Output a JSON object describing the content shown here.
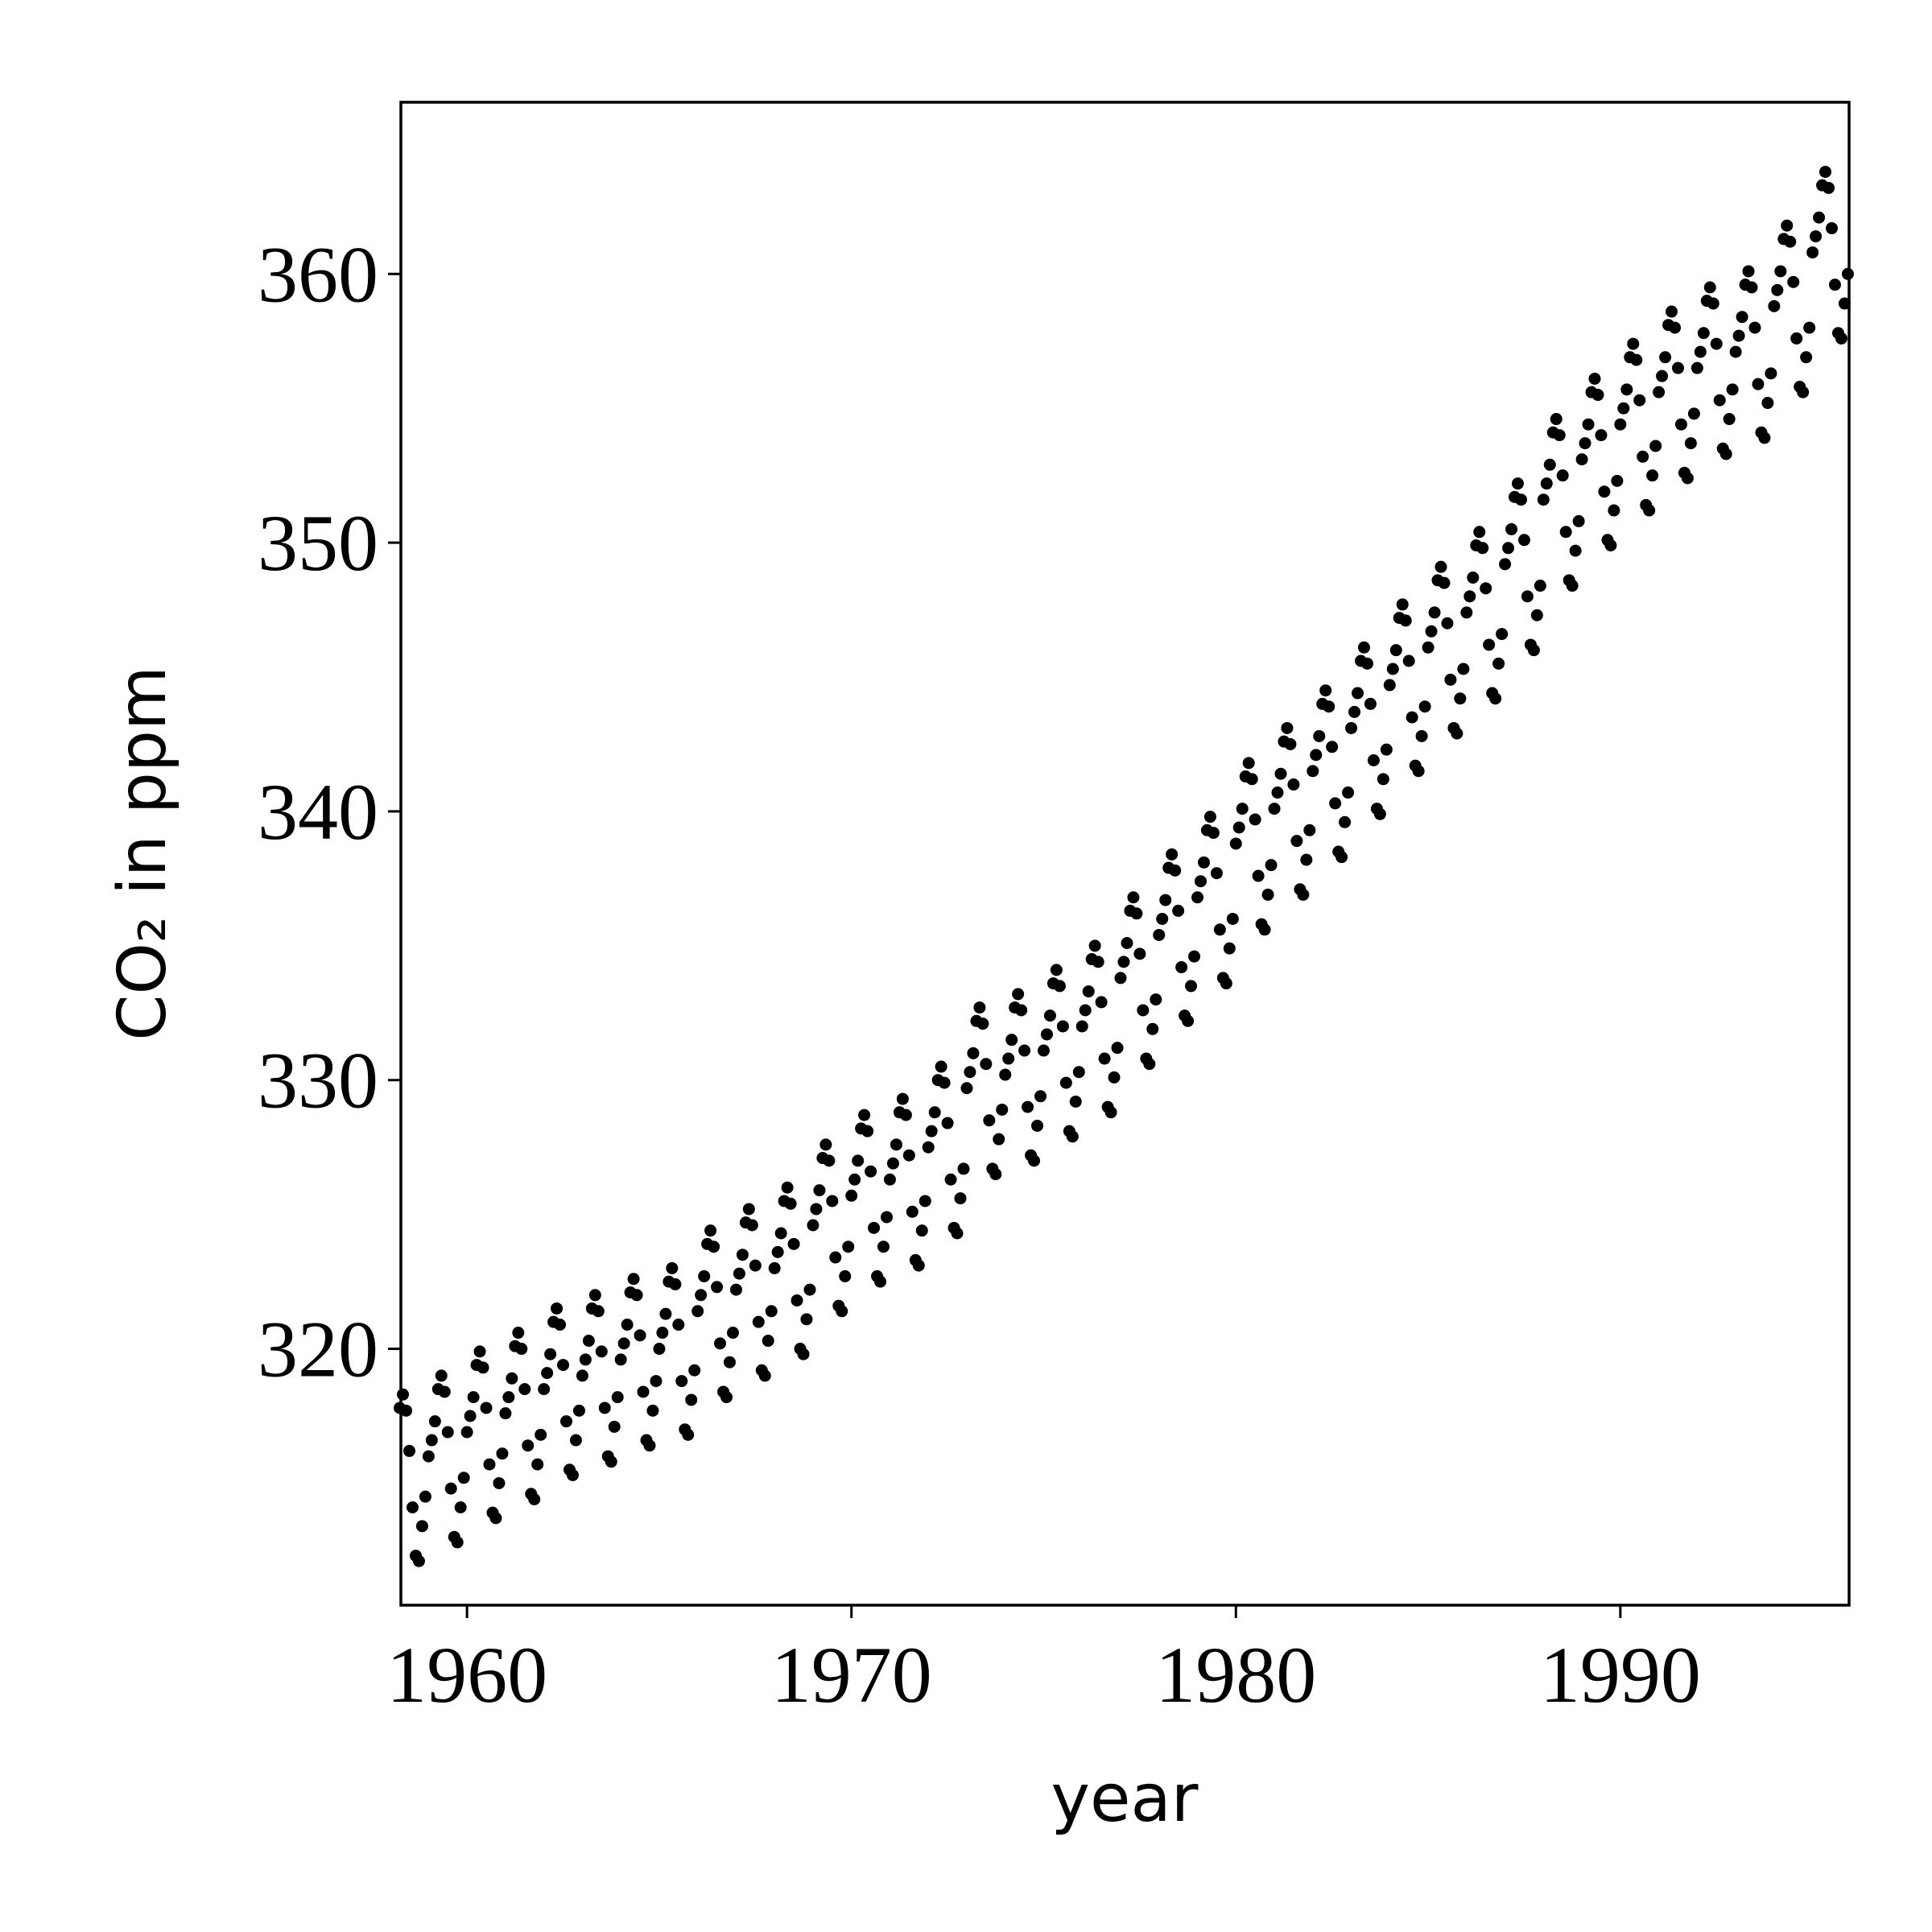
{
  "chart_data": {
    "type": "scatter",
    "xlabel": "year",
    "ylabel": "CO₂ in ppm",
    "color": "#000000",
    "xlim": [
      1958.28,
      1995.95
    ],
    "ylim": [
      310.46,
      366.39
    ],
    "xticks": [
      1960,
      1970,
      1980,
      1990
    ],
    "yticks": [
      320,
      330,
      340,
      350,
      360
    ],
    "x": [
      1958.25,
      1958.333,
      1958.417,
      1958.5,
      1958.583,
      1958.667,
      1958.75,
      1958.833,
      1958.917,
      1959,
      1959.083,
      1959.167,
      1959.25,
      1959.333,
      1959.417,
      1959.5,
      1959.583,
      1959.667,
      1959.75,
      1959.833,
      1959.917,
      1960,
      1960.083,
      1960.167,
      1960.25,
      1960.333,
      1960.417,
      1960.5,
      1960.583,
      1960.667,
      1960.75,
      1960.833,
      1960.917,
      1961,
      1961.083,
      1961.167,
      1961.25,
      1961.333,
      1961.417,
      1961.5,
      1961.583,
      1961.667,
      1961.75,
      1961.833,
      1961.917,
      1962,
      1962.083,
      1962.167,
      1962.25,
      1962.333,
      1962.417,
      1962.5,
      1962.583,
      1962.667,
      1962.75,
      1962.833,
      1962.917,
      1963,
      1963.083,
      1963.167,
      1963.25,
      1963.333,
      1963.417,
      1963.5,
      1963.583,
      1963.667,
      1963.75,
      1963.833,
      1963.917,
      1964,
      1964.083,
      1964.167,
      1964.25,
      1964.333,
      1964.417,
      1964.5,
      1964.583,
      1964.667,
      1964.75,
      1964.833,
      1964.917,
      1965,
      1965.083,
      1965.167,
      1965.25,
      1965.333,
      1965.417,
      1965.5,
      1965.583,
      1965.667,
      1965.75,
      1965.833,
      1965.917,
      1966,
      1966.083,
      1966.167,
      1966.25,
      1966.333,
      1966.417,
      1966.5,
      1966.583,
      1966.667,
      1966.75,
      1966.833,
      1966.917,
      1967,
      1967.083,
      1967.167,
      1967.25,
      1967.333,
      1967.417,
      1967.5,
      1967.583,
      1967.667,
      1967.75,
      1967.833,
      1967.917,
      1968,
      1968.083,
      1968.167,
      1968.25,
      1968.333,
      1968.417,
      1968.5,
      1968.583,
      1968.667,
      1968.75,
      1968.833,
      1968.917,
      1969,
      1969.083,
      1969.167,
      1969.25,
      1969.333,
      1969.417,
      1969.5,
      1969.583,
      1969.667,
      1969.75,
      1969.833,
      1969.917,
      1970,
      1970.083,
      1970.167,
      1970.25,
      1970.333,
      1970.417,
      1970.5,
      1970.583,
      1970.667,
      1970.75,
      1970.833,
      1970.917,
      1971,
      1971.083,
      1971.167,
      1971.25,
      1971.333,
      1971.417,
      1971.5,
      1971.583,
      1971.667,
      1971.75,
      1971.833,
      1971.917,
      1972,
      1972.083,
      1972.167,
      1972.25,
      1972.333,
      1972.417,
      1972.5,
      1972.583,
      1972.667,
      1972.75,
      1972.833,
      1972.917,
      1973,
      1973.083,
      1973.167,
      1973.25,
      1973.333,
      1973.417,
      1973.5,
      1973.583,
      1973.667,
      1973.75,
      1973.833,
      1973.917,
      1974,
      1974.083,
      1974.167,
      1974.25,
      1974.333,
      1974.417,
      1974.5,
      1974.583,
      1974.667,
      1974.75,
      1974.833,
      1974.917,
      1975,
      1975.083,
      1975.167,
      1975.25,
      1975.333,
      1975.417,
      1975.5,
      1975.583,
      1975.667,
      1975.75,
      1975.833,
      1975.917,
      1976,
      1976.083,
      1976.167,
      1976.25,
      1976.333,
      1976.417,
      1976.5,
      1976.583,
      1976.667,
      1976.75,
      1976.833,
      1976.917,
      1977,
      1977.083,
      1977.167,
      1977.25,
      1977.333,
      1977.417,
      1977.5,
      1977.583,
      1977.667,
      1977.75,
      1977.833,
      1977.917,
      1978,
      1978.083,
      1978.167,
      1978.25,
      1978.333,
      1978.417,
      1978.5,
      1978.583,
      1978.667,
      1978.75,
      1978.833,
      1978.917,
      1979,
      1979.083,
      1979.167,
      1979.25,
      1979.333,
      1979.417,
      1979.5,
      1979.583,
      1979.667,
      1979.75,
      1979.833,
      1979.917,
      1980,
      1980.083,
      1980.167,
      1980.25,
      1980.333,
      1980.417,
      1980.5,
      1980.583,
      1980.667,
      1980.75,
      1980.833,
      1980.917,
      1981,
      1981.083,
      1981.167,
      1981.25,
      1981.333,
      1981.417,
      1981.5,
      1981.583,
      1981.667,
      1981.75,
      1981.833,
      1981.917,
      1982,
      1982.083,
      1982.167,
      1982.25,
      1982.333,
      1982.417,
      1982.5,
      1982.583,
      1982.667,
      1982.75,
      1982.833,
      1982.917,
      1983,
      1983.083,
      1983.167,
      1983.25,
      1983.333,
      1983.417,
      1983.5,
      1983.583,
      1983.667,
      1983.75,
      1983.833,
      1983.917,
      1984,
      1984.083,
      1984.167,
      1984.25,
      1984.333,
      1984.417,
      1984.5,
      1984.583,
      1984.667,
      1984.75,
      1984.833,
      1984.917,
      1985,
      1985.083,
      1985.167,
      1985.25,
      1985.333,
      1985.417,
      1985.5,
      1985.583,
      1985.667,
      1985.75,
      1985.833,
      1985.917,
      1986,
      1986.083,
      1986.167,
      1986.25,
      1986.333,
      1986.417,
      1986.5,
      1986.583,
      1986.667,
      1986.75,
      1986.833,
      1986.917,
      1987,
      1987.083,
      1987.167,
      1987.25,
      1987.333,
      1987.417,
      1987.5,
      1987.583,
      1987.667,
      1987.75,
      1987.833,
      1987.917,
      1988,
      1988.083,
      1988.167,
      1988.25,
      1988.333,
      1988.417,
      1988.5,
      1988.583,
      1988.667,
      1988.75,
      1988.833,
      1988.917,
      1989,
      1989.083,
      1989.167,
      1989.25,
      1989.333,
      1989.417,
      1989.5,
      1989.583,
      1989.667,
      1989.75,
      1989.833,
      1989.917,
      1990,
      1990.083,
      1990.167,
      1990.25,
      1990.333,
      1990.417,
      1990.5,
      1990.583,
      1990.667,
      1990.75,
      1990.833,
      1990.917,
      1991,
      1991.083,
      1991.167,
      1991.25,
      1991.333,
      1991.417,
      1991.5,
      1991.583,
      1991.667,
      1991.75,
      1991.833,
      1991.917,
      1992,
      1992.083,
      1992.167,
      1992.25,
      1992.333,
      1992.417,
      1992.5,
      1992.583,
      1992.667,
      1992.75,
      1992.833,
      1992.917,
      1993,
      1993.083,
      1993.167,
      1993.25,
      1993.333,
      1993.417,
      1993.5,
      1993.583,
      1993.667,
      1993.75,
      1993.833,
      1993.917,
      1994,
      1994.083,
      1994.167,
      1994.25,
      1994.333,
      1994.417,
      1994.5,
      1994.583,
      1994.667,
      1994.75,
      1994.833,
      1994.917,
      1995,
      1995.083,
      1995.167,
      1995.25,
      1995.333,
      1995.417,
      1995.5,
      1995.583,
      1995.667,
      1995.75,
      1995.833,
      1995.917
    ],
    "values": [
      317.8,
      318.3,
      317.7,
      316.2,
      314.1,
      312.3,
      312.1,
      313.4,
      314.5,
      316.0,
      316.6,
      317.3,
      318.5,
      319.0,
      318.4,
      316.9,
      314.8,
      313.0,
      312.8,
      314.1,
      315.2,
      316.9,
      317.5,
      318.2,
      319.4,
      319.9,
      319.3,
      317.8,
      315.7,
      313.9,
      313.7,
      315.0,
      316.1,
      317.6,
      318.2,
      318.9,
      320.1,
      320.6,
      320.0,
      318.5,
      316.4,
      314.6,
      314.4,
      315.7,
      316.8,
      318.5,
      319.1,
      319.8,
      321.0,
      321.5,
      320.9,
      319.4,
      317.3,
      315.5,
      315.3,
      316.6,
      317.7,
      319.0,
      319.6,
      320.3,
      321.5,
      322.0,
      321.4,
      319.9,
      317.8,
      316.0,
      315.8,
      317.1,
      318.2,
      319.6,
      320.2,
      320.9,
      322.1,
      322.6,
      322.0,
      320.5,
      318.4,
      316.6,
      316.4,
      317.7,
      318.8,
      320.0,
      320.6,
      321.3,
      322.5,
      323.0,
      322.4,
      320.9,
      318.8,
      317.0,
      316.8,
      318.1,
      319.2,
      321.4,
      322.0,
      322.7,
      323.9,
      324.4,
      323.8,
      322.3,
      320.2,
      318.4,
      318.2,
      319.5,
      320.6,
      322.2,
      322.8,
      323.5,
      324.7,
      325.2,
      324.6,
      323.1,
      321.0,
      319.2,
      319.0,
      320.3,
      321.4,
      323.0,
      323.6,
      324.3,
      325.5,
      326.0,
      325.4,
      323.9,
      321.8,
      320.0,
      319.8,
      321.1,
      322.2,
      324.6,
      325.2,
      325.9,
      327.1,
      327.6,
      327.0,
      325.5,
      323.4,
      321.6,
      321.4,
      322.7,
      323.8,
      325.7,
      326.3,
      327.0,
      328.2,
      328.7,
      328.1,
      326.6,
      324.5,
      322.7,
      322.5,
      323.8,
      324.9,
      326.3,
      326.9,
      327.6,
      328.8,
      329.3,
      328.7,
      327.2,
      325.1,
      323.3,
      323.1,
      324.4,
      325.5,
      327.5,
      328.1,
      328.8,
      330.0,
      330.5,
      329.9,
      328.4,
      326.3,
      324.5,
      324.3,
      325.6,
      326.7,
      329.7,
      330.3,
      331.0,
      332.2,
      332.7,
      332.1,
      330.6,
      328.5,
      326.7,
      326.5,
      327.8,
      328.9,
      330.2,
      330.8,
      331.5,
      332.7,
      333.2,
      332.6,
      331.1,
      329.0,
      327.2,
      327.0,
      328.3,
      329.4,
      331.1,
      331.7,
      332.4,
      333.6,
      334.1,
      333.5,
      332.0,
      329.9,
      328.1,
      327.9,
      329.2,
      330.3,
      332.0,
      332.6,
      333.3,
      334.5,
      335.0,
      334.4,
      332.9,
      330.8,
      329.0,
      328.8,
      330.1,
      331.2,
      333.8,
      334.4,
      335.1,
      336.3,
      336.8,
      336.2,
      334.7,
      332.6,
      330.8,
      330.6,
      331.9,
      333.0,
      335.4,
      336.0,
      336.7,
      337.9,
      338.4,
      337.8,
      336.3,
      334.2,
      332.4,
      332.2,
      333.5,
      334.6,
      336.8,
      337.4,
      338.1,
      339.3,
      339.8,
      339.2,
      337.7,
      335.6,
      333.8,
      333.6,
      334.9,
      336.0,
      338.8,
      339.4,
      340.1,
      341.3,
      341.8,
      341.2,
      339.7,
      337.6,
      335.8,
      335.6,
      336.9,
      338.0,
      340.1,
      340.7,
      341.4,
      342.6,
      343.1,
      342.5,
      341.0,
      338.9,
      337.1,
      336.9,
      338.2,
      339.3,
      341.5,
      342.1,
      342.8,
      344.0,
      344.5,
      343.9,
      342.4,
      340.3,
      338.5,
      338.3,
      339.6,
      340.7,
      343.1,
      343.7,
      344.4,
      345.6,
      346.1,
      345.5,
      344.0,
      341.9,
      340.1,
      339.9,
      341.2,
      342.3,
      344.7,
      345.3,
      346.0,
      347.2,
      347.7,
      347.1,
      345.6,
      343.5,
      341.7,
      341.5,
      342.8,
      343.9,
      346.1,
      346.7,
      347.4,
      348.6,
      349.1,
      348.5,
      347.0,
      344.9,
      343.1,
      342.9,
      344.2,
      345.3,
      347.4,
      348.0,
      348.7,
      349.9,
      350.4,
      349.8,
      348.3,
      346.2,
      344.4,
      344.2,
      345.5,
      346.6,
      349.2,
      349.8,
      350.5,
      351.7,
      352.2,
      351.6,
      350.1,
      348.0,
      346.2,
      346.0,
      347.3,
      348.4,
      351.6,
      352.2,
      352.9,
      354.1,
      354.6,
      354.0,
      352.5,
      350.4,
      348.6,
      348.4,
      349.7,
      350.8,
      353.1,
      353.7,
      354.4,
      355.6,
      356.1,
      355.5,
      354.0,
      351.9,
      350.1,
      349.9,
      351.2,
      352.3,
      354.4,
      355.0,
      355.7,
      356.9,
      357.4,
      356.8,
      355.3,
      353.2,
      351.4,
      351.2,
      352.5,
      353.6,
      355.6,
      356.2,
      356.9,
      358.1,
      358.6,
      358.0,
      356.5,
      354.4,
      352.6,
      352.4,
      353.7,
      354.8,
      356.5,
      357.1,
      357.8,
      359.0,
      359.5,
      358.9,
      357.4,
      355.3,
      353.5,
      353.3,
      354.6,
      355.7,
      357.1,
      357.7,
      358.4,
      359.6,
      360.1,
      359.5,
      358.0,
      355.9,
      354.1,
      353.9,
      355.2,
      356.3,
      358.8,
      359.4,
      360.1,
      361.3,
      361.8,
      361.2,
      359.7,
      357.6,
      355.8,
      355.6,
      356.9,
      358.0,
      360.8,
      361.4,
      362.1,
      363.3,
      363.8,
      363.2,
      361.7,
      359.6,
      357.8,
      357.6,
      358.9,
      360.0
    ]
  }
}
